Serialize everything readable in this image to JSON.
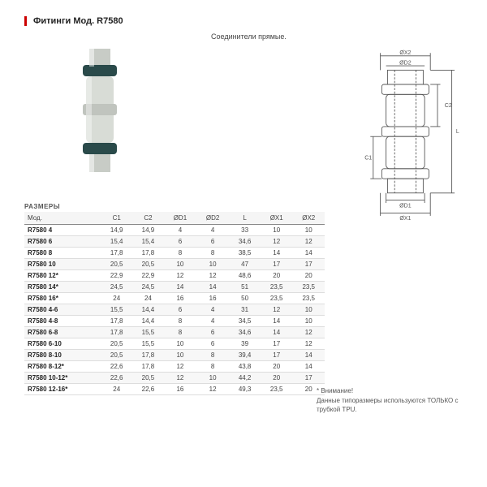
{
  "header": {
    "title": "Фитинги Мод. R7580",
    "subtitle": "Соединители прямые."
  },
  "photo": {
    "body_color": "#d8dcd6",
    "ring_color": "#2a4a4a",
    "tube_color": "#c8ccc6"
  },
  "diagram": {
    "stroke": "#555555",
    "labels": {
      "ox2": "ØX2",
      "od2": "ØD2",
      "c2": "C2",
      "l": "L",
      "c1": "C1",
      "od1": "ØD1",
      "ox1": "ØX1"
    }
  },
  "table": {
    "section_label": "РАЗМЕРЫ",
    "columns": [
      "Мод.",
      "C1",
      "C2",
      "ØD1",
      "ØD2",
      "L",
      "ØX1",
      "ØX2"
    ],
    "rows": [
      [
        "R7580 4",
        "14,9",
        "14,9",
        "4",
        "4",
        "33",
        "10",
        "10"
      ],
      [
        "R7580 6",
        "15,4",
        "15,4",
        "6",
        "6",
        "34,6",
        "12",
        "12"
      ],
      [
        "R7580 8",
        "17,8",
        "17,8",
        "8",
        "8",
        "38,5",
        "14",
        "14"
      ],
      [
        "R7580 10",
        "20,5",
        "20,5",
        "10",
        "10",
        "47",
        "17",
        "17"
      ],
      [
        "R7580 12*",
        "22,9",
        "22,9",
        "12",
        "12",
        "48,6",
        "20",
        "20"
      ],
      [
        "R7580 14*",
        "24,5",
        "24,5",
        "14",
        "14",
        "51",
        "23,5",
        "23,5"
      ],
      [
        "R7580 16*",
        "24",
        "24",
        "16",
        "16",
        "50",
        "23,5",
        "23,5"
      ],
      [
        "R7580 4-6",
        "15,5",
        "14,4",
        "6",
        "4",
        "31",
        "12",
        "10"
      ],
      [
        "R7580 4-8",
        "17,8",
        "14,4",
        "8",
        "4",
        "34,5",
        "14",
        "10"
      ],
      [
        "R7580 6-8",
        "17,8",
        "15,5",
        "8",
        "6",
        "34,6",
        "14",
        "12"
      ],
      [
        "R7580 6-10",
        "20,5",
        "15,5",
        "10",
        "6",
        "39",
        "17",
        "12"
      ],
      [
        "R7580 8-10",
        "20,5",
        "17,8",
        "10",
        "8",
        "39,4",
        "17",
        "14"
      ],
      [
        "R7580 8-12*",
        "22,6",
        "17,8",
        "12",
        "8",
        "43,8",
        "20",
        "14"
      ],
      [
        "R7580 10-12*",
        "22,6",
        "20,5",
        "12",
        "10",
        "44,2",
        "20",
        "17"
      ],
      [
        "R7580 12-16*",
        "24",
        "22,6",
        "16",
        "12",
        "49,3",
        "23,5",
        "20"
      ]
    ],
    "header_bg": "#f5f5f5",
    "border_color": "#dddddd"
  },
  "note": {
    "line1": "* Внимание!",
    "line2": "Данные типоразмеры используются ТОЛЬКО с трубкой TPU."
  }
}
